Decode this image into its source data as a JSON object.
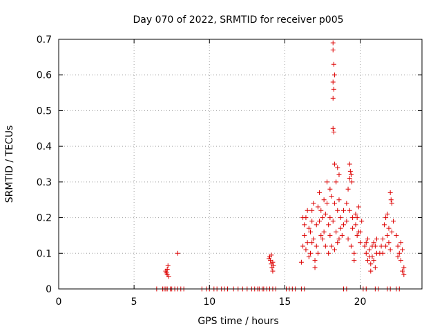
{
  "chart_data": {
    "type": "scatter",
    "title": "Day 070 of 2022, SRMTID for receiver p005",
    "xlabel": "GPS time / hours",
    "ylabel": "SRMTID / TECUs",
    "xlim": [
      0,
      24.1
    ],
    "ylim": [
      0,
      0.7
    ],
    "x_ticks": [
      0,
      5,
      10,
      15,
      20
    ],
    "x_tick_labels": [
      "0",
      "5",
      "10",
      "15",
      "20"
    ],
    "y_ticks": [
      0,
      0.1,
      0.2,
      0.3,
      0.4,
      0.5,
      0.6,
      0.7
    ],
    "y_tick_labels": [
      "0",
      "0.1",
      "0.2",
      "0.3",
      "0.4",
      "0.5",
      "0.6",
      "0.7"
    ],
    "grid": true,
    "marker": "+",
    "marker_color": "#dd0000",
    "series": [
      {
        "name": "SRMTID",
        "points": [
          [
            6.5,
            0
          ],
          [
            6.9,
            0
          ],
          [
            7.0,
            0
          ],
          [
            7.1,
            0
          ],
          [
            7.2,
            0
          ],
          [
            7.4,
            0
          ],
          [
            7.5,
            0
          ],
          [
            7.7,
            0
          ],
          [
            7.9,
            0
          ],
          [
            8.1,
            0
          ],
          [
            8.3,
            0
          ],
          [
            9.5,
            0
          ],
          [
            9.8,
            0
          ],
          [
            10.0,
            0
          ],
          [
            10.3,
            0
          ],
          [
            10.5,
            0
          ],
          [
            10.8,
            0
          ],
          [
            11.0,
            0
          ],
          [
            11.2,
            0
          ],
          [
            11.6,
            0
          ],
          [
            11.9,
            0
          ],
          [
            12.2,
            0
          ],
          [
            12.5,
            0
          ],
          [
            12.8,
            0
          ],
          [
            13.0,
            0
          ],
          [
            13.2,
            0
          ],
          [
            13.3,
            0
          ],
          [
            13.5,
            0
          ],
          [
            13.6,
            0
          ],
          [
            13.8,
            0
          ],
          [
            14.0,
            0
          ],
          [
            14.2,
            0
          ],
          [
            14.4,
            0
          ],
          [
            15.1,
            0
          ],
          [
            15.3,
            0
          ],
          [
            15.5,
            0
          ],
          [
            15.7,
            0
          ],
          [
            16.1,
            0
          ],
          [
            16.3,
            0
          ],
          [
            18.9,
            0
          ],
          [
            19.1,
            0
          ],
          [
            20.2,
            0
          ],
          [
            20.4,
            0
          ],
          [
            21.0,
            0
          ],
          [
            21.2,
            0
          ],
          [
            21.8,
            0
          ],
          [
            22.0,
            0
          ],
          [
            22.4,
            0
          ],
          [
            22.6,
            0
          ],
          [
            7.1,
            0.05
          ],
          [
            7.15,
            0.045
          ],
          [
            7.2,
            0.04
          ],
          [
            7.25,
            0.065
          ],
          [
            7.3,
            0.035
          ],
          [
            7.2,
            0.055
          ],
          [
            7.9,
            0.1
          ],
          [
            14.0,
            0.09
          ],
          [
            14.05,
            0.08
          ],
          [
            14.1,
            0.07
          ],
          [
            14.15,
            0.06
          ],
          [
            14.2,
            0.075
          ],
          [
            14.25,
            0.065
          ],
          [
            13.95,
            0.085
          ],
          [
            14.1,
            0.095
          ],
          [
            14.2,
            0.05
          ],
          [
            16.1,
            0.075
          ],
          [
            16.2,
            0.12
          ],
          [
            16.3,
            0.15
          ],
          [
            16.4,
            0.2
          ],
          [
            16.5,
            0.13
          ],
          [
            16.6,
            0.17
          ],
          [
            16.7,
            0.1
          ],
          [
            16.8,
            0.22
          ],
          [
            16.9,
            0.14
          ],
          [
            17.0,
            0.08
          ],
          [
            17.1,
            0.18
          ],
          [
            17.2,
            0.23
          ],
          [
            17.3,
            0.27
          ],
          [
            17.4,
            0.15
          ],
          [
            17.5,
            0.2
          ],
          [
            17.6,
            0.25
          ],
          [
            17.7,
            0.12
          ],
          [
            17.8,
            0.3
          ],
          [
            17.9,
            0.18
          ],
          [
            18.0,
            0.28
          ],
          [
            16.3,
            0.18
          ],
          [
            16.5,
            0.22
          ],
          [
            16.7,
            0.16
          ],
          [
            16.9,
            0.24
          ],
          [
            17.1,
            0.12
          ],
          [
            17.3,
            0.19
          ],
          [
            17.5,
            0.14
          ],
          [
            17.7,
            0.21
          ],
          [
            17.9,
            0.1
          ],
          [
            16.4,
            0.11
          ],
          [
            16.6,
            0.09
          ],
          [
            16.8,
            0.13
          ],
          [
            17.0,
            0.06
          ],
          [
            17.2,
            0.1
          ],
          [
            17.4,
            0.22
          ],
          [
            17.6,
            0.16
          ],
          [
            17.8,
            0.24
          ],
          [
            18.0,
            0.2
          ],
          [
            16.2,
            0.2
          ],
          [
            16.8,
            0.19
          ],
          [
            18.2,
            0.69
          ],
          [
            18.2,
            0.67
          ],
          [
            18.25,
            0.63
          ],
          [
            18.3,
            0.6
          ],
          [
            18.2,
            0.58
          ],
          [
            18.25,
            0.56
          ],
          [
            18.2,
            0.535
          ],
          [
            18.2,
            0.45
          ],
          [
            18.25,
            0.44
          ],
          [
            18.3,
            0.35
          ],
          [
            18.5,
            0.34
          ],
          [
            18.6,
            0.32
          ],
          [
            18.4,
            0.3
          ],
          [
            18.1,
            0.26
          ],
          [
            18.3,
            0.24
          ],
          [
            18.5,
            0.22
          ],
          [
            18.7,
            0.2
          ],
          [
            18.9,
            0.18
          ],
          [
            18.2,
            0.19
          ],
          [
            18.4,
            0.16
          ],
          [
            18.6,
            0.14
          ],
          [
            18.8,
            0.15
          ],
          [
            18.1,
            0.12
          ],
          [
            18.3,
            0.11
          ],
          [
            18.5,
            0.13
          ],
          [
            18.7,
            0.17
          ],
          [
            18.9,
            0.22
          ],
          [
            18.0,
            0.15
          ],
          [
            18.6,
            0.25
          ],
          [
            19.3,
            0.35
          ],
          [
            19.35,
            0.33
          ],
          [
            19.4,
            0.32
          ],
          [
            19.3,
            0.31
          ],
          [
            19.2,
            0.28
          ],
          [
            19.45,
            0.3
          ],
          [
            19.1,
            0.24
          ],
          [
            19.3,
            0.22
          ],
          [
            19.5,
            0.2
          ],
          [
            19.7,
            0.18
          ],
          [
            19.9,
            0.16
          ],
          [
            20.1,
            0.19
          ],
          [
            19.2,
            0.14
          ],
          [
            19.4,
            0.12
          ],
          [
            19.6,
            0.1
          ],
          [
            19.8,
            0.15
          ],
          [
            20.0,
            0.13
          ],
          [
            19.5,
            0.17
          ],
          [
            19.7,
            0.21
          ],
          [
            19.9,
            0.23
          ],
          [
            19.1,
            0.19
          ],
          [
            19.6,
            0.08
          ],
          [
            19.8,
            0.2
          ],
          [
            20.0,
            0.16
          ],
          [
            20.3,
            0.12
          ],
          [
            20.4,
            0.1
          ],
          [
            20.5,
            0.08
          ],
          [
            20.6,
            0.11
          ],
          [
            20.7,
            0.07
          ],
          [
            20.8,
            0.09
          ],
          [
            20.9,
            0.13
          ],
          [
            21.0,
            0.06
          ],
          [
            21.1,
            0.1
          ],
          [
            20.5,
            0.14
          ],
          [
            20.7,
            0.05
          ],
          [
            20.9,
            0.08
          ],
          [
            21.0,
            0.12
          ],
          [
            20.6,
            0.09
          ],
          [
            20.8,
            0.12
          ],
          [
            21.1,
            0.14
          ],
          [
            20.4,
            0.13
          ],
          [
            21.3,
            0.1
          ],
          [
            21.4,
            0.12
          ],
          [
            21.5,
            0.14
          ],
          [
            21.6,
            0.18
          ],
          [
            21.7,
            0.2
          ],
          [
            21.8,
            0.15
          ],
          [
            21.9,
            0.13
          ],
          [
            22.0,
            0.11
          ],
          [
            22.1,
            0.16
          ],
          [
            22.2,
            0.19
          ],
          [
            21.5,
            0.1
          ],
          [
            21.7,
            0.12
          ],
          [
            21.9,
            0.17
          ],
          [
            22.0,
            0.27
          ],
          [
            22.05,
            0.25
          ],
          [
            22.1,
            0.24
          ],
          [
            21.8,
            0.21
          ],
          [
            22.4,
            0.15
          ],
          [
            22.5,
            0.12
          ],
          [
            22.6,
            0.1
          ],
          [
            22.7,
            0.08
          ],
          [
            22.8,
            0.11
          ],
          [
            22.9,
            0.06
          ],
          [
            22.9,
            0.04
          ],
          [
            22.5,
            0.09
          ],
          [
            22.7,
            0.13
          ],
          [
            22.8,
            0.05
          ]
        ]
      }
    ]
  }
}
